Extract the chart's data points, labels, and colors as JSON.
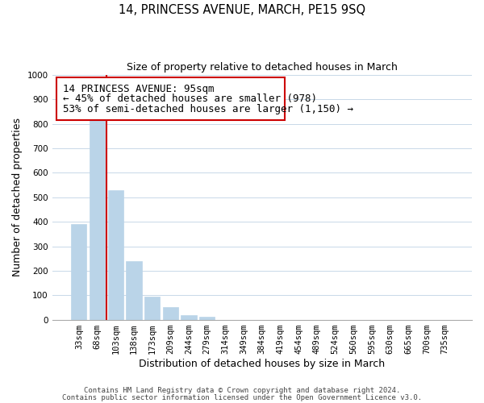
{
  "title": "14, PRINCESS AVENUE, MARCH, PE15 9SQ",
  "subtitle": "Size of property relative to detached houses in March",
  "xlabel": "Distribution of detached houses by size in March",
  "ylabel": "Number of detached properties",
  "bar_labels": [
    "33sqm",
    "68sqm",
    "103sqm",
    "138sqm",
    "173sqm",
    "209sqm",
    "244sqm",
    "279sqm",
    "314sqm",
    "349sqm",
    "384sqm",
    "419sqm",
    "454sqm",
    "489sqm",
    "524sqm",
    "560sqm",
    "595sqm",
    "630sqm",
    "665sqm",
    "700sqm",
    "735sqm"
  ],
  "bar_values": [
    390,
    830,
    530,
    240,
    95,
    52,
    20,
    13,
    0,
    0,
    0,
    0,
    0,
    0,
    0,
    0,
    0,
    0,
    0,
    0,
    0
  ],
  "bar_color": "#bad4e8",
  "bar_edge_color": "#bad4e8",
  "ylim": [
    0,
    1000
  ],
  "yticks": [
    0,
    100,
    200,
    300,
    400,
    500,
    600,
    700,
    800,
    900,
    1000
  ],
  "vline_color": "#cc0000",
  "annotation_box_text_lines": [
    "14 PRINCESS AVENUE: 95sqm",
    "← 45% of detached houses are smaller (978)",
    "53% of semi-detached houses are larger (1,150) →"
  ],
  "footer_line1": "Contains HM Land Registry data © Crown copyright and database right 2024.",
  "footer_line2": "Contains public sector information licensed under the Open Government Licence v3.0.",
  "background_color": "#ffffff",
  "grid_color": "#c8d8e8",
  "title_fontsize": 10.5,
  "subtitle_fontsize": 9,
  "axis_label_fontsize": 9,
  "tick_fontsize": 7.5,
  "annotation_fontsize": 9,
  "footer_fontsize": 6.5
}
